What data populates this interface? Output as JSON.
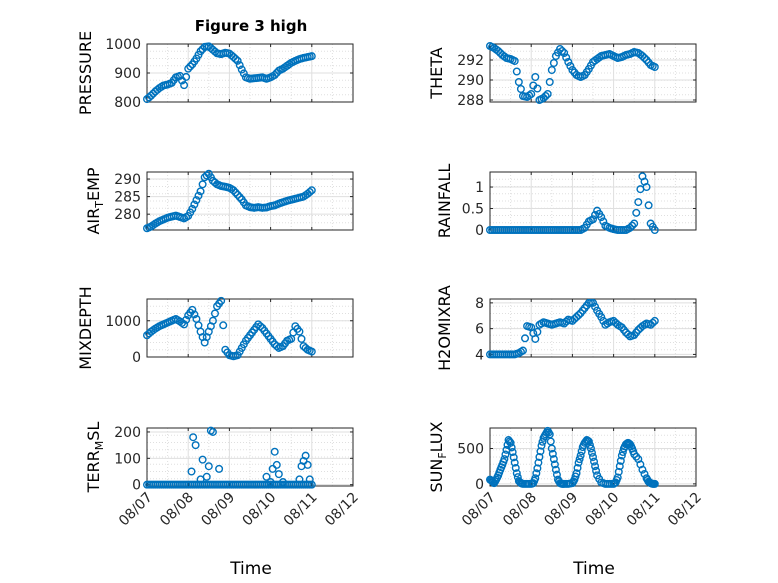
{
  "figure": {
    "title": "Figure 3 high"
  },
  "chart_data": [
    {
      "type": "scatter",
      "title": "Figure 3 high",
      "ylabel": "PRESSURE",
      "ylabel_parts": [
        {
          "t": "PRESSURE"
        }
      ],
      "ylim": [
        800,
        1000
      ],
      "yticks": [
        800,
        900,
        1000
      ],
      "ytick_labels": [
        "800",
        "900",
        "1000"
      ],
      "xlim": [
        0,
        5
      ],
      "grid": true,
      "series": [
        {
          "x": [
            0,
            0.1,
            0.2,
            0.3,
            0.4,
            0.5,
            0.6,
            0.7,
            0.8,
            0.9,
            1,
            1.1,
            1.2,
            1.3,
            1.4,
            1.5,
            1.6,
            1.7,
            1.8,
            1.9,
            2,
            2.1,
            2.2,
            2.3,
            2.4,
            2.5,
            2.6,
            2.7,
            2.8,
            2.9,
            3,
            3.1,
            3.2,
            3.3,
            3.4,
            3.5,
            3.6,
            3.7,
            3.8,
            3.9,
            4
          ],
          "y": [
            810,
            822,
            836,
            848,
            857,
            860,
            866,
            885,
            890,
            858,
            915,
            930,
            950,
            975,
            990,
            992,
            980,
            968,
            965,
            970,
            967,
            955,
            942,
            912,
            885,
            880,
            882,
            883,
            885,
            880,
            885,
            893,
            908,
            915,
            925,
            935,
            942,
            948,
            952,
            955,
            958
          ]
        }
      ]
    },
    {
      "type": "scatter",
      "ylabel": "THETA",
      "ylabel_parts": [
        {
          "t": "THETA"
        }
      ],
      "ylim": [
        287.8,
        293.6
      ],
      "yticks": [
        288,
        290,
        292
      ],
      "ytick_labels": [
        "288",
        "290",
        "292"
      ],
      "xlim": [
        0,
        5
      ],
      "grid": true,
      "series": [
        {
          "x": [
            0,
            0.1,
            0.2,
            0.3,
            0.4,
            0.5,
            0.6,
            0.7,
            0.8,
            0.9,
            1,
            1.1,
            1.2,
            1.3,
            1.4,
            1.5,
            1.6,
            1.7,
            1.8,
            1.9,
            2,
            2.1,
            2.2,
            2.3,
            2.4,
            2.5,
            2.6,
            2.7,
            2.8,
            2.9,
            3,
            3.1,
            3.2,
            3.3,
            3.4,
            3.5,
            3.6,
            3.7,
            3.8,
            3.9,
            4
          ],
          "y": [
            293.4,
            293.2,
            292.9,
            292.5,
            292.2,
            292.1,
            291.9,
            289.8,
            288.4,
            288.3,
            288.6,
            290.3,
            288.0,
            288.2,
            288.6,
            291.0,
            292.4,
            293.1,
            292.7,
            291.8,
            291.0,
            290.5,
            290.3,
            290.5,
            291.1,
            291.8,
            292.1,
            292.4,
            292.5,
            292.6,
            292.4,
            292.2,
            292.3,
            292.5,
            292.6,
            292.8,
            292.7,
            292.4,
            292.0,
            291.5,
            291.3
          ]
        }
      ]
    },
    {
      "type": "scatter",
      "ylabel": "AIR_TEMP",
      "ylabel_parts": [
        {
          "t": "AIR"
        },
        {
          "t": "T",
          "sub": true
        },
        {
          "t": "EMP"
        }
      ],
      "ylim": [
        275.5,
        292
      ],
      "yticks": [
        280,
        285,
        290
      ],
      "ytick_labels": [
        "280",
        "285",
        "290"
      ],
      "xlim": [
        0,
        5
      ],
      "grid": true,
      "series": [
        {
          "x": [
            0,
            0.1,
            0.2,
            0.3,
            0.4,
            0.5,
            0.6,
            0.7,
            0.8,
            0.9,
            1,
            1.1,
            1.2,
            1.3,
            1.4,
            1.5,
            1.6,
            1.7,
            1.8,
            1.9,
            2,
            2.1,
            2.2,
            2.3,
            2.4,
            2.5,
            2.6,
            2.7,
            2.8,
            2.9,
            3,
            3.1,
            3.2,
            3.3,
            3.4,
            3.5,
            3.6,
            3.7,
            3.8,
            3.9,
            4
          ],
          "y": [
            276,
            276.5,
            277.3,
            278,
            278.5,
            279,
            279.3,
            279.6,
            279.2,
            278.8,
            279.5,
            281.5,
            284,
            286.5,
            290.5,
            291.5,
            289.5,
            288.5,
            288,
            287.8,
            287.5,
            286.8,
            285.5,
            284.2,
            282.5,
            282,
            281.8,
            282,
            281.8,
            281.9,
            282.3,
            282.5,
            283,
            283.4,
            283.8,
            284.1,
            284.4,
            284.7,
            285,
            285.8,
            286.8
          ]
        }
      ]
    },
    {
      "type": "scatter",
      "ylabel": "RAINFALL",
      "ylabel_parts": [
        {
          "t": "RAINFALL"
        }
      ],
      "ylim": [
        0,
        1.35
      ],
      "yticks": [
        0,
        0.5,
        1
      ],
      "ytick_labels": [
        "0",
        "0.5",
        "1"
      ],
      "xlim": [
        0,
        5
      ],
      "grid": true,
      "series": [
        {
          "x": [
            0,
            0.1,
            0.2,
            0.3,
            0.4,
            0.5,
            0.6,
            0.7,
            0.8,
            0.9,
            1,
            1.1,
            1.2,
            1.3,
            1.4,
            1.5,
            1.6,
            1.7,
            1.8,
            1.9,
            2,
            2.1,
            2.2,
            2.3,
            2.4,
            2.5,
            2.6,
            2.7,
            2.8,
            2.9,
            3,
            3.1,
            3.2,
            3.3,
            3.4,
            3.5,
            3.6,
            3.7,
            3.8,
            3.9,
            4
          ],
          "y": [
            0,
            0,
            0,
            0,
            0,
            0,
            0,
            0,
            0,
            0,
            0,
            0,
            0,
            0,
            0,
            0,
            0,
            0,
            0,
            0,
            0,
            0,
            0,
            0.05,
            0.2,
            0.25,
            0.45,
            0.3,
            0.1,
            0.05,
            0.02,
            0,
            0,
            0,
            0.05,
            0.15,
            0.65,
            1.25,
            1.0,
            0.15,
            0
          ]
        }
      ]
    },
    {
      "type": "scatter",
      "ylabel": "MIXDEPTH",
      "ylabel_parts": [
        {
          "t": "MIXDEPTH"
        }
      ],
      "ylim": [
        0,
        1600
      ],
      "yticks": [
        0,
        1000
      ],
      "ytick_labels": [
        "0",
        "1000"
      ],
      "xlim": [
        0,
        5
      ],
      "grid": true,
      "series": [
        {
          "x": [
            0,
            0.1,
            0.2,
            0.3,
            0.4,
            0.5,
            0.6,
            0.7,
            0.8,
            0.9,
            1,
            1.1,
            1.2,
            1.3,
            1.4,
            1.5,
            1.6,
            1.7,
            1.8,
            1.9,
            2,
            2.1,
            2.2,
            2.3,
            2.4,
            2.5,
            2.6,
            2.7,
            2.8,
            2.9,
            3,
            3.1,
            3.2,
            3.3,
            3.4,
            3.5,
            3.6,
            3.7,
            3.8,
            3.9,
            4
          ],
          "y": [
            600,
            700,
            780,
            850,
            900,
            950,
            1000,
            1050,
            980,
            900,
            1150,
            1300,
            1050,
            700,
            400,
            700,
            1000,
            1400,
            1550,
            200,
            50,
            20,
            50,
            250,
            450,
            600,
            750,
            900,
            800,
            650,
            500,
            350,
            250,
            300,
            450,
            500,
            850,
            700,
            300,
            200,
            150
          ]
        }
      ]
    },
    {
      "type": "scatter",
      "ylabel": "H2OMIXRA",
      "ylabel_parts": [
        {
          "t": "H2OMIXRA"
        }
      ],
      "ylim": [
        3.8,
        8.3
      ],
      "yticks": [
        4,
        6,
        8
      ],
      "ytick_labels": [
        "4",
        "6",
        "8"
      ],
      "xlim": [
        0,
        5
      ],
      "grid": true,
      "series": [
        {
          "x": [
            0,
            0.1,
            0.2,
            0.3,
            0.4,
            0.5,
            0.6,
            0.7,
            0.8,
            0.9,
            1,
            1.1,
            1.2,
            1.3,
            1.4,
            1.5,
            1.6,
            1.7,
            1.8,
            1.9,
            2,
            2.1,
            2.2,
            2.3,
            2.4,
            2.5,
            2.6,
            2.7,
            2.8,
            2.9,
            3,
            3.1,
            3.2,
            3.3,
            3.4,
            3.5,
            3.6,
            3.7,
            3.8,
            3.9,
            4
          ],
          "y": [
            4,
            4,
            4,
            4,
            4,
            4,
            4,
            4.1,
            4.3,
            6.2,
            6.1,
            5.2,
            6.3,
            6.5,
            6.4,
            6.3,
            6.4,
            6.5,
            6.4,
            6.7,
            6.6,
            6.9,
            7.2,
            7.6,
            8,
            8,
            7.4,
            6.9,
            6.3,
            6.5,
            6.6,
            6.3,
            6.1,
            5.7,
            5.4,
            5.5,
            5.9,
            6.2,
            6.4,
            6.3,
            6.6
          ]
        }
      ]
    },
    {
      "type": "scatter",
      "ylabel": "TERR_MSL",
      "ylabel_parts": [
        {
          "t": "TERR"
        },
        {
          "t": "M",
          "sub": true
        },
        {
          "t": "SL"
        }
      ],
      "ylim": [
        -5,
        215
      ],
      "yticks": [
        0,
        100,
        200
      ],
      "ytick_labels": [
        "0",
        "100",
        "200"
      ],
      "xlim": [
        0,
        5
      ],
      "grid": true,
      "series": [
        {
          "x": [
            0,
            0.1,
            0.2,
            0.3,
            0.4,
            0.5,
            0.6,
            0.7,
            0.8,
            0.9,
            1,
            1.1,
            1.2,
            1.3,
            1.4,
            1.5,
            1.6,
            1.7,
            1.8,
            1.9,
            2,
            2.1,
            2.2,
            2.3,
            2.4,
            2.5,
            2.6,
            2.7,
            2.8,
            2.9,
            3,
            3.1,
            3.2,
            3.3,
            3.4,
            3.5,
            3.6,
            3.7,
            3.8,
            3.9,
            4
          ],
          "y": [
            0,
            0,
            0,
            0,
            0,
            0,
            0,
            0,
            0,
            0,
            0,
            0,
            0,
            0,
            0,
            0,
            0,
            0,
            0,
            0,
            0,
            0,
            0,
            0,
            0,
            0,
            0,
            0,
            0,
            0,
            0,
            0,
            0,
            0,
            0,
            0,
            0,
            0,
            0,
            0,
            0
          ],
          "peaks": [
            [
              1.08,
              50
            ],
            [
              1.12,
              180
            ],
            [
              1.18,
              150
            ],
            [
              1.3,
              20
            ],
            [
              1.35,
              95
            ],
            [
              1.45,
              30
            ],
            [
              1.55,
              205
            ],
            [
              1.6,
              200
            ],
            [
              1.75,
              60
            ],
            [
              1.5,
              70
            ],
            [
              2.9,
              30
            ],
            [
              3.0,
              10
            ],
            [
              3.05,
              60
            ],
            [
              3.1,
              125
            ],
            [
              3.15,
              75
            ],
            [
              3.2,
              40
            ],
            [
              3.3,
              10
            ],
            [
              3.7,
              20
            ],
            [
              3.75,
              70
            ],
            [
              3.8,
              90
            ],
            [
              3.85,
              110
            ],
            [
              3.9,
              75
            ],
            [
              3.95,
              20
            ]
          ]
        }
      ]
    },
    {
      "type": "scatter",
      "ylabel": "SUN_FLUX",
      "ylabel_parts": [
        {
          "t": "SUN"
        },
        {
          "t": "F",
          "sub": true
        },
        {
          "t": "LUX"
        }
      ],
      "ylim": [
        -30,
        790
      ],
      "yticks": [
        0,
        500
      ],
      "ytick_labels": [
        "0",
        "500"
      ],
      "xlim": [
        0,
        5
      ],
      "grid": true,
      "series": [
        {
          "x": [
            0,
            0.05,
            0.1,
            0.15,
            0.2,
            0.25,
            0.3,
            0.35,
            0.4,
            0.45,
            0.5,
            0.55,
            0.6,
            0.65,
            0.7,
            0.75,
            0.8,
            0.9,
            1.0,
            1.05,
            1.1,
            1.15,
            1.2,
            1.25,
            1.3,
            1.35,
            1.4,
            1.45,
            1.5,
            1.55,
            1.6,
            1.65,
            1.7,
            1.75,
            1.8,
            1.9,
            2.0,
            2.05,
            2.1,
            2.15,
            2.2,
            2.25,
            2.3,
            2.35,
            2.4,
            2.45,
            2.5,
            2.55,
            2.6,
            2.7,
            2.8,
            2.9,
            3.0,
            3.05,
            3.1,
            3.15,
            3.2,
            3.25,
            3.3,
            3.35,
            3.4,
            3.45,
            3.5,
            3.6,
            3.7,
            3.8,
            3.85,
            3.9,
            3.95,
            4.0
          ],
          "y": [
            60,
            40,
            10,
            60,
            120,
            200,
            270,
            350,
            480,
            620,
            580,
            450,
            300,
            150,
            40,
            10,
            0,
            0,
            0,
            10,
            80,
            220,
            380,
            540,
            650,
            700,
            750,
            700,
            500,
            350,
            200,
            60,
            10,
            0,
            0,
            0,
            10,
            60,
            150,
            300,
            400,
            520,
            580,
            620,
            600,
            500,
            380,
            250,
            120,
            20,
            0,
            0,
            0,
            20,
            90,
            250,
            400,
            500,
            560,
            580,
            560,
            500,
            420,
            350,
            200,
            80,
            30,
            10,
            0,
            0
          ]
        }
      ]
    }
  ],
  "xaxis": {
    "label": "Time",
    "ticks": [
      0,
      1,
      2,
      3,
      4,
      5
    ],
    "tick_labels": [
      "08/07",
      "08/08",
      "08/09",
      "08/10",
      "08/11",
      "08/12"
    ]
  },
  "style": {
    "marker_color": "#0072BD",
    "axis_color": "#262626",
    "grid_color": "#dfdfdf"
  }
}
